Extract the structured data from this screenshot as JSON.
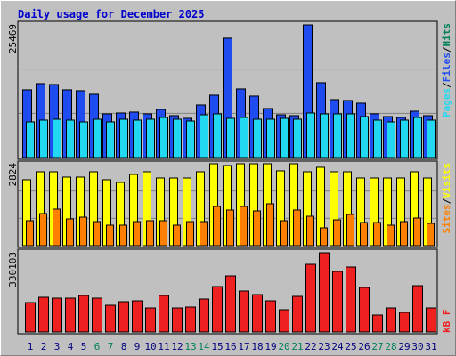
{
  "chart_data": [
    {
      "type": "bar",
      "title": "Daily usage for December 2025",
      "legend_separator": "/",
      "grid": true,
      "ylim": [
        0,
        25469
      ],
      "yticks": [
        25469
      ],
      "series": [
        {
          "name": "Hits",
          "color": "#00805c",
          "values": [
            12996,
            14193,
            14022,
            12996,
            12825,
            12141,
            8379,
            8550,
            8721,
            8379,
            9234,
            8037,
            7524,
            10089,
            11970,
            22914,
            13167,
            11799,
            9405,
            8208,
            8037,
            25469,
            14364,
            11115,
            10944,
            10431,
            8379,
            7866,
            7695,
            8892,
            8037
          ]
        },
        {
          "name": "Files",
          "color": "#1e4cf0",
          "values": [
            12996,
            14193,
            14022,
            12996,
            12825,
            12141,
            8379,
            8550,
            8721,
            8379,
            9234,
            8037,
            7524,
            10089,
            11970,
            22914,
            13167,
            11799,
            9405,
            8208,
            8037,
            25469,
            14364,
            11115,
            10944,
            10431,
            8379,
            7866,
            7695,
            8892,
            8037
          ]
        },
        {
          "name": "Pages",
          "color": "#22d8f0",
          "values": [
            6840,
            7182,
            7353,
            7182,
            6840,
            7353,
            6840,
            7353,
            7182,
            7353,
            7695,
            7353,
            7011,
            8208,
            8379,
            7524,
            7695,
            7353,
            7353,
            7524,
            7353,
            8550,
            8379,
            8379,
            8379,
            7866,
            7182,
            6840,
            7182,
            7695,
            7182
          ]
        }
      ]
    },
    {
      "type": "bar",
      "legend_separator": "/",
      "grid": true,
      "ylim": [
        0,
        2824
      ],
      "yticks": [
        2824
      ],
      "series": [
        {
          "name": "Visits",
          "color": "#ffff00",
          "values": [
            2272,
            2548,
            2548,
            2364,
            2364,
            2548,
            2272,
            2180,
            2456,
            2548,
            2333,
            2333,
            2333,
            2548,
            2824,
            2763,
            2824,
            2824,
            2824,
            2579,
            2824,
            2548,
            2702,
            2548,
            2548,
            2333,
            2333,
            2333,
            2333,
            2548,
            2333
          ]
        },
        {
          "name": "Sites",
          "color": "#ff8000",
          "values": [
            860,
            1105,
            1259,
            921,
            982,
            829,
            706,
            706,
            829,
            860,
            860,
            706,
            829,
            829,
            1351,
            1228,
            1351,
            1197,
            1443,
            860,
            1228,
            1013,
            614,
            890,
            1075,
            798,
            798,
            706,
            829,
            952,
            768
          ]
        }
      ]
    },
    {
      "type": "bar",
      "grid": false,
      "ylim": [
        0,
        330103
      ],
      "yticks": [
        330103
      ],
      "categories": [
        "1",
        "2",
        "3",
        "4",
        "5",
        "6",
        "7",
        "8",
        "9",
        "10",
        "11",
        "12",
        "13",
        "14",
        "15",
        "16",
        "17",
        "18",
        "19",
        "20",
        "21",
        "22",
        "23",
        "24",
        "25",
        "26",
        "27",
        "28",
        "29",
        "30",
        "31"
      ],
      "category_colors": [
        "#000080",
        "#000080",
        "#000080",
        "#000080",
        "#000080",
        "#00805c",
        "#00805c",
        "#000080",
        "#000080",
        "#000080",
        "#000080",
        "#000080",
        "#00805c",
        "#00805c",
        "#000080",
        "#000080",
        "#000080",
        "#000080",
        "#000080",
        "#00805c",
        "#00805c",
        "#000080",
        "#000080",
        "#000080",
        "#000080",
        "#000080",
        "#00805c",
        "#00805c",
        "#000080",
        "#000080",
        "#000080"
      ],
      "series": [
        {
          "name": "kB F",
          "color": "#ee2020",
          "values": [
            122397,
            144651,
            140942,
            140942,
            152069,
            140942,
            111270,
            126106,
            129815,
            100143,
            152069,
            100143,
            103852,
            137233,
            189159,
            233667,
            170614,
            155778,
            129815,
            92725,
            148360,
            281884,
            330103,
            252212,
            270757,
            185450,
            70471,
            100143,
            81598,
            192868,
            100143
          ]
        }
      ]
    }
  ]
}
